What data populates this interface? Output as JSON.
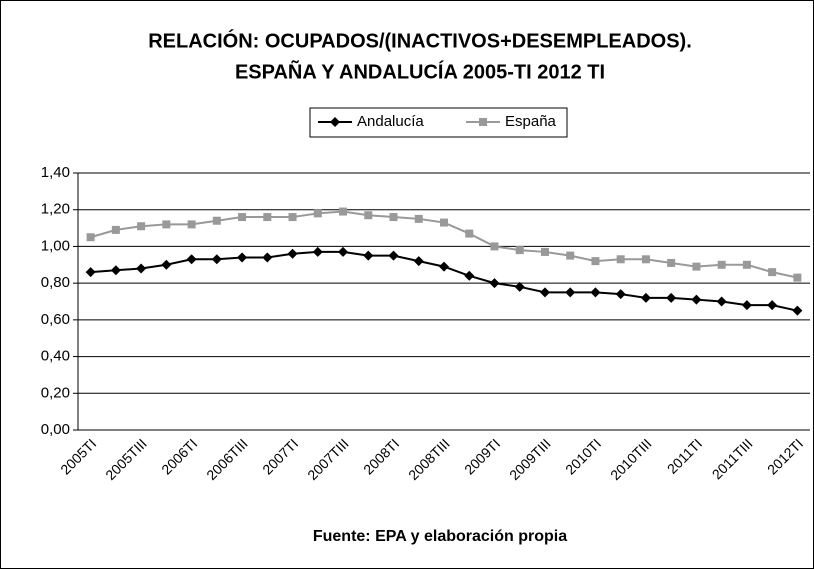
{
  "chart_data": {
    "type": "line",
    "title": [
      "RELACIÓN: OCUPADOS/(INACTIVOS+DESEMPLEADOS).",
      "ESPAÑA Y ANDALUCÍA 2005-TI 2012 TI"
    ],
    "x_label": "Fuente: EPA y elaboración propia",
    "categories": [
      "2005TI",
      null,
      "2005TIII",
      null,
      "2006TI",
      null,
      "2006TIII",
      null,
      "2007TI",
      null,
      "2007TIII",
      null,
      "2008TI",
      null,
      "2008TIII",
      null,
      "2009TI",
      null,
      "2009TIII",
      null,
      "2010TI",
      null,
      "2010TIII",
      null,
      "2011TI",
      null,
      "2011TIII",
      null,
      "2012TI"
    ],
    "series": [
      {
        "name": "Andalucía",
        "color": "#000000",
        "marker": "diamond",
        "values": [
          0.86,
          0.87,
          0.88,
          0.9,
          0.93,
          0.93,
          0.94,
          0.94,
          0.96,
          0.97,
          0.97,
          0.95,
          0.95,
          0.92,
          0.89,
          0.84,
          0.8,
          0.78,
          0.75,
          0.75,
          0.75,
          0.74,
          0.72,
          0.72,
          0.71,
          0.7,
          0.68,
          0.68,
          0.65
        ]
      },
      {
        "name": "España",
        "color": "#999999",
        "marker": "square",
        "values": [
          1.05,
          1.09,
          1.11,
          1.12,
          1.12,
          1.14,
          1.16,
          1.16,
          1.16,
          1.18,
          1.19,
          1.17,
          1.16,
          1.15,
          1.13,
          1.07,
          1.0,
          0.98,
          0.97,
          0.95,
          0.92,
          0.93,
          0.93,
          0.91,
          0.89,
          0.9,
          0.9,
          0.86,
          0.83
        ]
      }
    ],
    "ylim": [
      0,
      1.4
    ],
    "yticks": [
      {
        "value": 0,
        "label": "0,00"
      },
      {
        "value": 0.2,
        "label": "0,20"
      },
      {
        "value": 0.4,
        "label": "0,40"
      },
      {
        "value": 0.6,
        "label": "0,60"
      },
      {
        "value": 0.8,
        "label": "0,80"
      },
      {
        "value": 1.0,
        "label": "1,00"
      },
      {
        "value": 1.2,
        "label": "1,20"
      },
      {
        "value": 1.4,
        "label": "1,40"
      }
    ],
    "grid": true,
    "legend": "top"
  }
}
